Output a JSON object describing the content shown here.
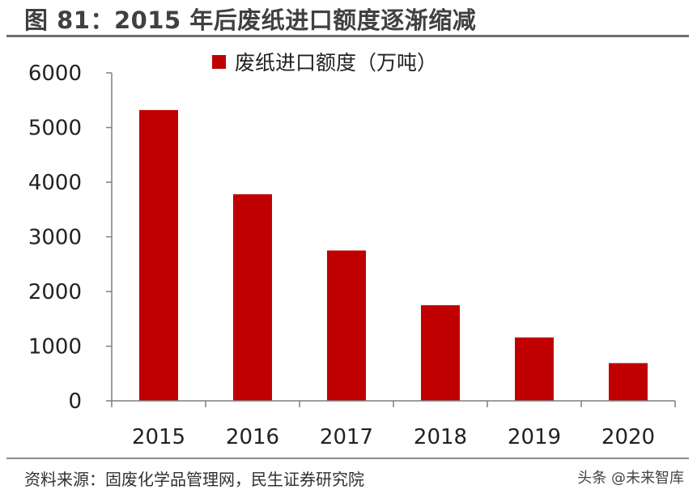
{
  "title": "图 81：2015 年后废纸进口额度逐渐缩减",
  "source": "资料来源：固废化学品管理网，民生证券研究院",
  "watermark": "头条 @未来智库",
  "colors": {
    "bar": "#C00000",
    "axis": "#7f7f7f",
    "text": "#222222"
  },
  "chart_data": {
    "type": "bar",
    "categories": [
      "2015",
      "2016",
      "2017",
      "2018",
      "2019",
      "2020"
    ],
    "series": [
      {
        "name": "废纸进口额度（万吨）",
        "values": [
          5320,
          3780,
          2750,
          1750,
          1160,
          690
        ]
      }
    ],
    "ylim": [
      0,
      6000
    ],
    "yticks": [
      0,
      1000,
      2000,
      3000,
      4000,
      5000,
      6000
    ],
    "legend": "top-center",
    "grid": false
  }
}
